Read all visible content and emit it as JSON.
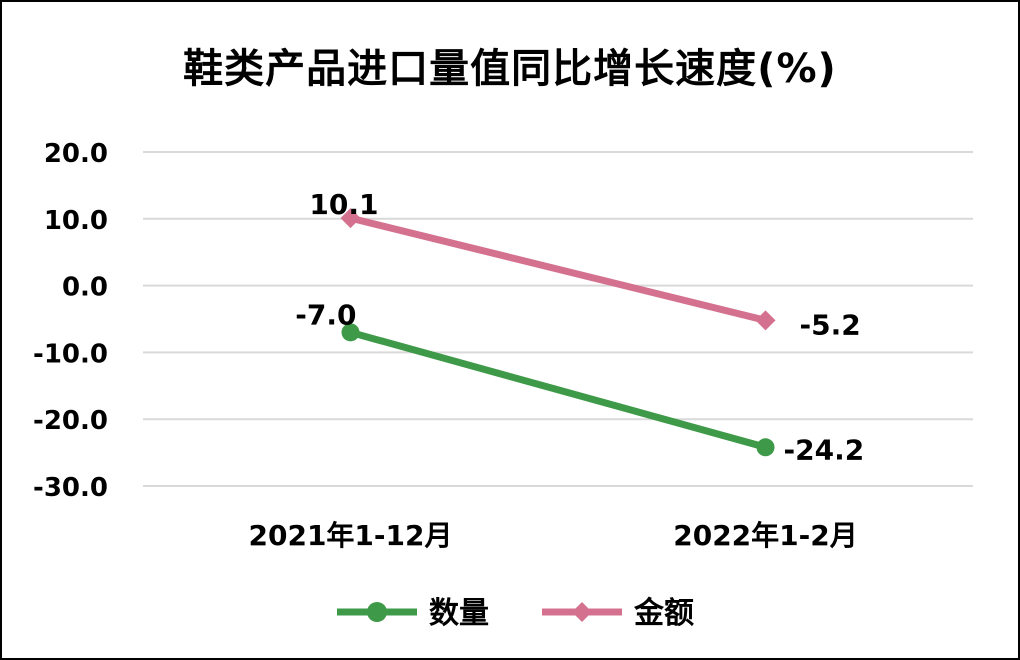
{
  "chart_data": {
    "type": "line",
    "title": "鞋类产品进口量值同比增长速度(%)",
    "categories": [
      "2021年1-12月",
      "2022年1-2月"
    ],
    "series": [
      {
        "name": "数量",
        "values": [
          -7.0,
          -24.2
        ],
        "color": "#3e9a48",
        "marker": "circle",
        "labels": [
          "-7.0",
          "-24.2"
        ]
      },
      {
        "name": "金额",
        "values": [
          10.1,
          -5.2
        ],
        "color": "#d4718f",
        "marker": "diamond",
        "labels": [
          "10.1",
          "-5.2"
        ]
      }
    ],
    "yticks": [
      "20.0",
      "10.0",
      "0.0",
      "-10.0",
      "-20.0",
      "-30.0"
    ],
    "ylim": [
      -30,
      20
    ],
    "grid": true,
    "legend": "bottom"
  }
}
